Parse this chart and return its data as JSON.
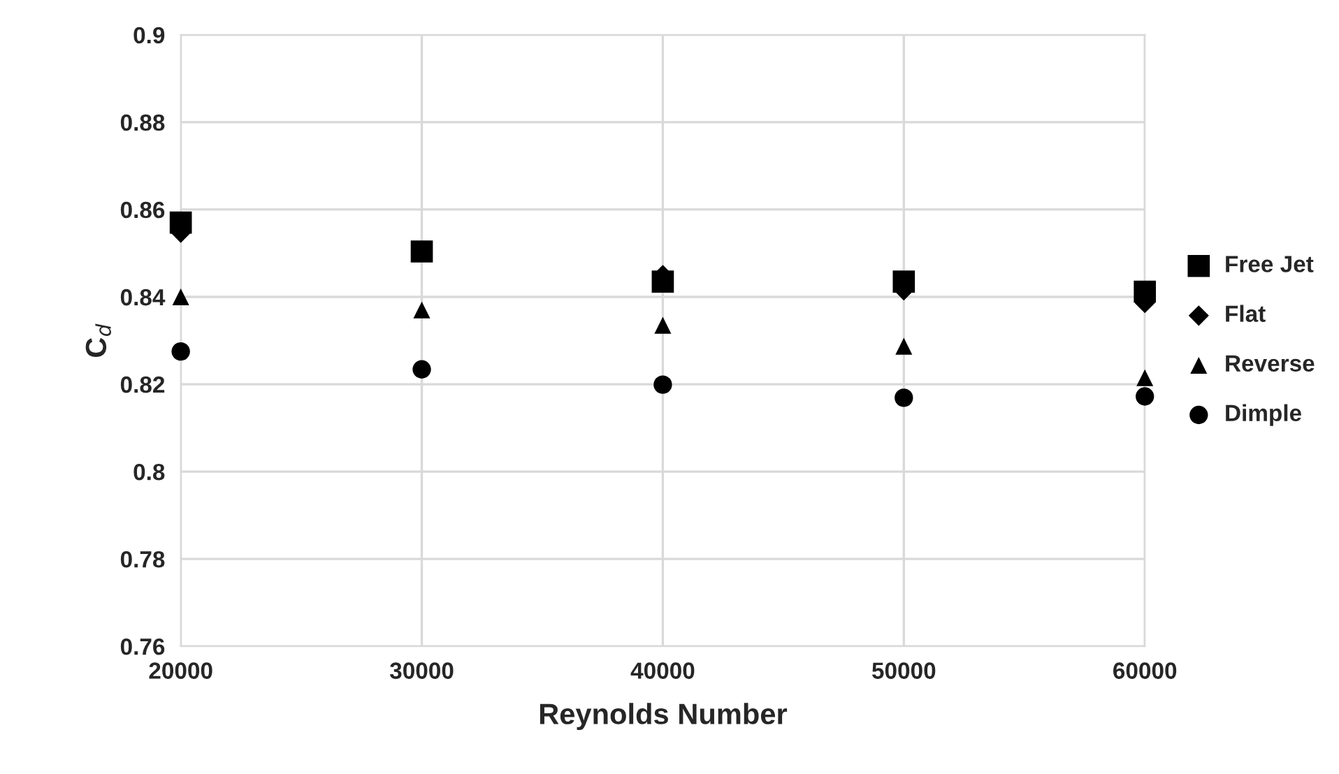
{
  "chart_data": {
    "type": "scatter",
    "xlabel": "Reynolds Number",
    "ylabel": "C$_{d}$",
    "x": [
      20000,
      30000,
      40000,
      50000,
      60000
    ],
    "series": [
      {
        "name": "Free Jet",
        "color": "#000000",
        "marker": "square",
        "values": [
          0.857,
          0.8504,
          0.8435,
          0.8435,
          0.8412
        ]
      },
      {
        "name": "Flat",
        "color": "#000000",
        "marker": "diamond",
        "values": [
          0.8547,
          null,
          0.845,
          0.8415,
          0.8386
        ]
      },
      {
        "name": "Reverse",
        "color": "#000000",
        "marker": "triangle",
        "values": [
          0.84,
          0.837,
          0.8335,
          0.8287,
          0.8215
        ]
      },
      {
        "name": "Dimple",
        "color": "#000000",
        "marker": "circle",
        "values": [
          0.8275,
          0.8234,
          0.8199,
          0.8169,
          0.8172
        ]
      }
    ],
    "xlim": [
      20000,
      60000
    ],
    "xticks": [
      20000,
      30000,
      40000,
      50000,
      60000
    ],
    "ylim": [
      0.76,
      0.9
    ],
    "yticks": [
      0.76,
      0.78,
      0.8,
      0.82,
      0.84,
      0.86,
      0.88,
      0.9
    ],
    "grid": true,
    "legend": "right"
  }
}
